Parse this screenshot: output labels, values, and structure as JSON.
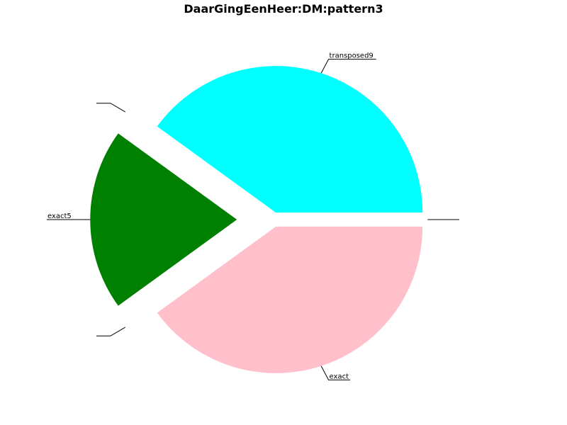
{
  "chart_data": {
    "type": "pie",
    "title": "DaarGingEenHeer:DM:pattern3",
    "start_angle_deg": 0,
    "direction": "counterclockwise",
    "slices": [
      {
        "label": "transposed9",
        "value": 40,
        "color": "#00ffff",
        "explode": 0.05
      },
      {
        "label": "",
        "value": 0,
        "color": "#ffffff",
        "explode": 0.25
      },
      {
        "label": "exact5",
        "value": 20,
        "color": "#008000",
        "explode": 0.25
      },
      {
        "label": "",
        "value": 0,
        "color": "#ffffff",
        "explode": 0.25
      },
      {
        "label": "exact",
        "value": 40,
        "color": "#ffc0cb",
        "explode": 0.05
      },
      {
        "label": "",
        "value": 0,
        "color": "#ffffff",
        "explode": 0.05
      }
    ]
  }
}
